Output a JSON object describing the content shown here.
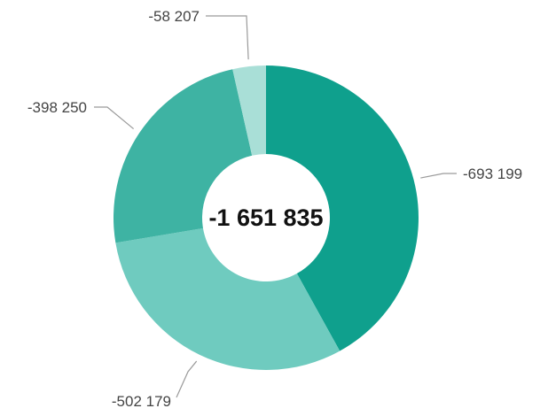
{
  "chart_data": {
    "type": "pie",
    "donut": true,
    "total_label": "-1 651 835",
    "slices": [
      {
        "value": -693199,
        "label": "-693 199",
        "color": "#0fa08d"
      },
      {
        "value": -502179,
        "label": "-502 179",
        "color": "#6fcbbf"
      },
      {
        "value": -398250,
        "label": "-398 250",
        "color": "#3eb3a3"
      },
      {
        "value": -58207,
        "label": "-58 207",
        "color": "#a9dfd7"
      }
    ],
    "start": "12 o'clock",
    "direction": "clockwise",
    "legend": "none"
  }
}
